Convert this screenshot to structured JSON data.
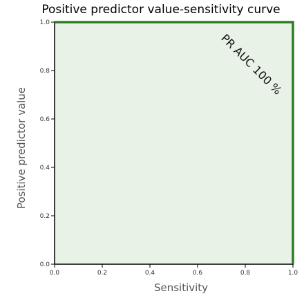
{
  "chart_data": {
    "type": "area",
    "title": "Positive predictor value-sensitivity curve",
    "xlabel": "Sensitivity",
    "ylabel": "Positive predictor value",
    "xlim": [
      0.0,
      1.0
    ],
    "ylim": [
      0.0,
      1.0
    ],
    "xticks": [
      "0.0",
      "0.2",
      "0.4",
      "0.6",
      "0.8",
      "1.0"
    ],
    "yticks": [
      "0.0",
      "0.2",
      "0.4",
      "0.6",
      "0.8",
      "1.0"
    ],
    "series": [
      {
        "x": [
          0.0,
          1.0,
          1.0
        ],
        "y": [
          1.0,
          1.0,
          0.0
        ]
      }
    ],
    "annotation": "PR AUC 100 %",
    "grid": false,
    "colors": {
      "line": "#2e7d24",
      "fill": "#e8f2e6",
      "axis": "#000000"
    }
  }
}
